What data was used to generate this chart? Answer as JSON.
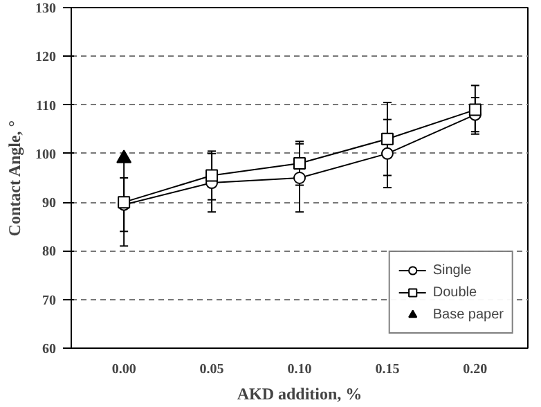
{
  "chart_data": {
    "type": "line",
    "xlabel": "AKD addition, %",
    "ylabel": "Contact Angle, °",
    "categories": [
      "0.00",
      "0.05",
      "0.10",
      "0.15",
      "0.20"
    ],
    "series": [
      {
        "name": "Single",
        "color": "#000000",
        "marker": "circle",
        "values": [
          89.5,
          94,
          95,
          100,
          108
        ],
        "errors": [
          5.5,
          6,
          7,
          7,
          3.5
        ]
      },
      {
        "name": "Double",
        "color": "#000000",
        "marker": "square",
        "values": [
          90,
          95.5,
          98,
          103,
          109
        ],
        "errors": [
          9,
          5,
          4.5,
          7.5,
          5
        ]
      },
      {
        "name": "Base paper",
        "type": "scatter",
        "color": "#000000",
        "marker": "triangle",
        "x": [
          "0.00"
        ],
        "values": [
          99
        ]
      }
    ],
    "ylim": [
      60,
      130
    ],
    "yticks": [
      60,
      70,
      80,
      90,
      100,
      110,
      120,
      130
    ],
    "grid": "y",
    "legend": "bottom right"
  }
}
